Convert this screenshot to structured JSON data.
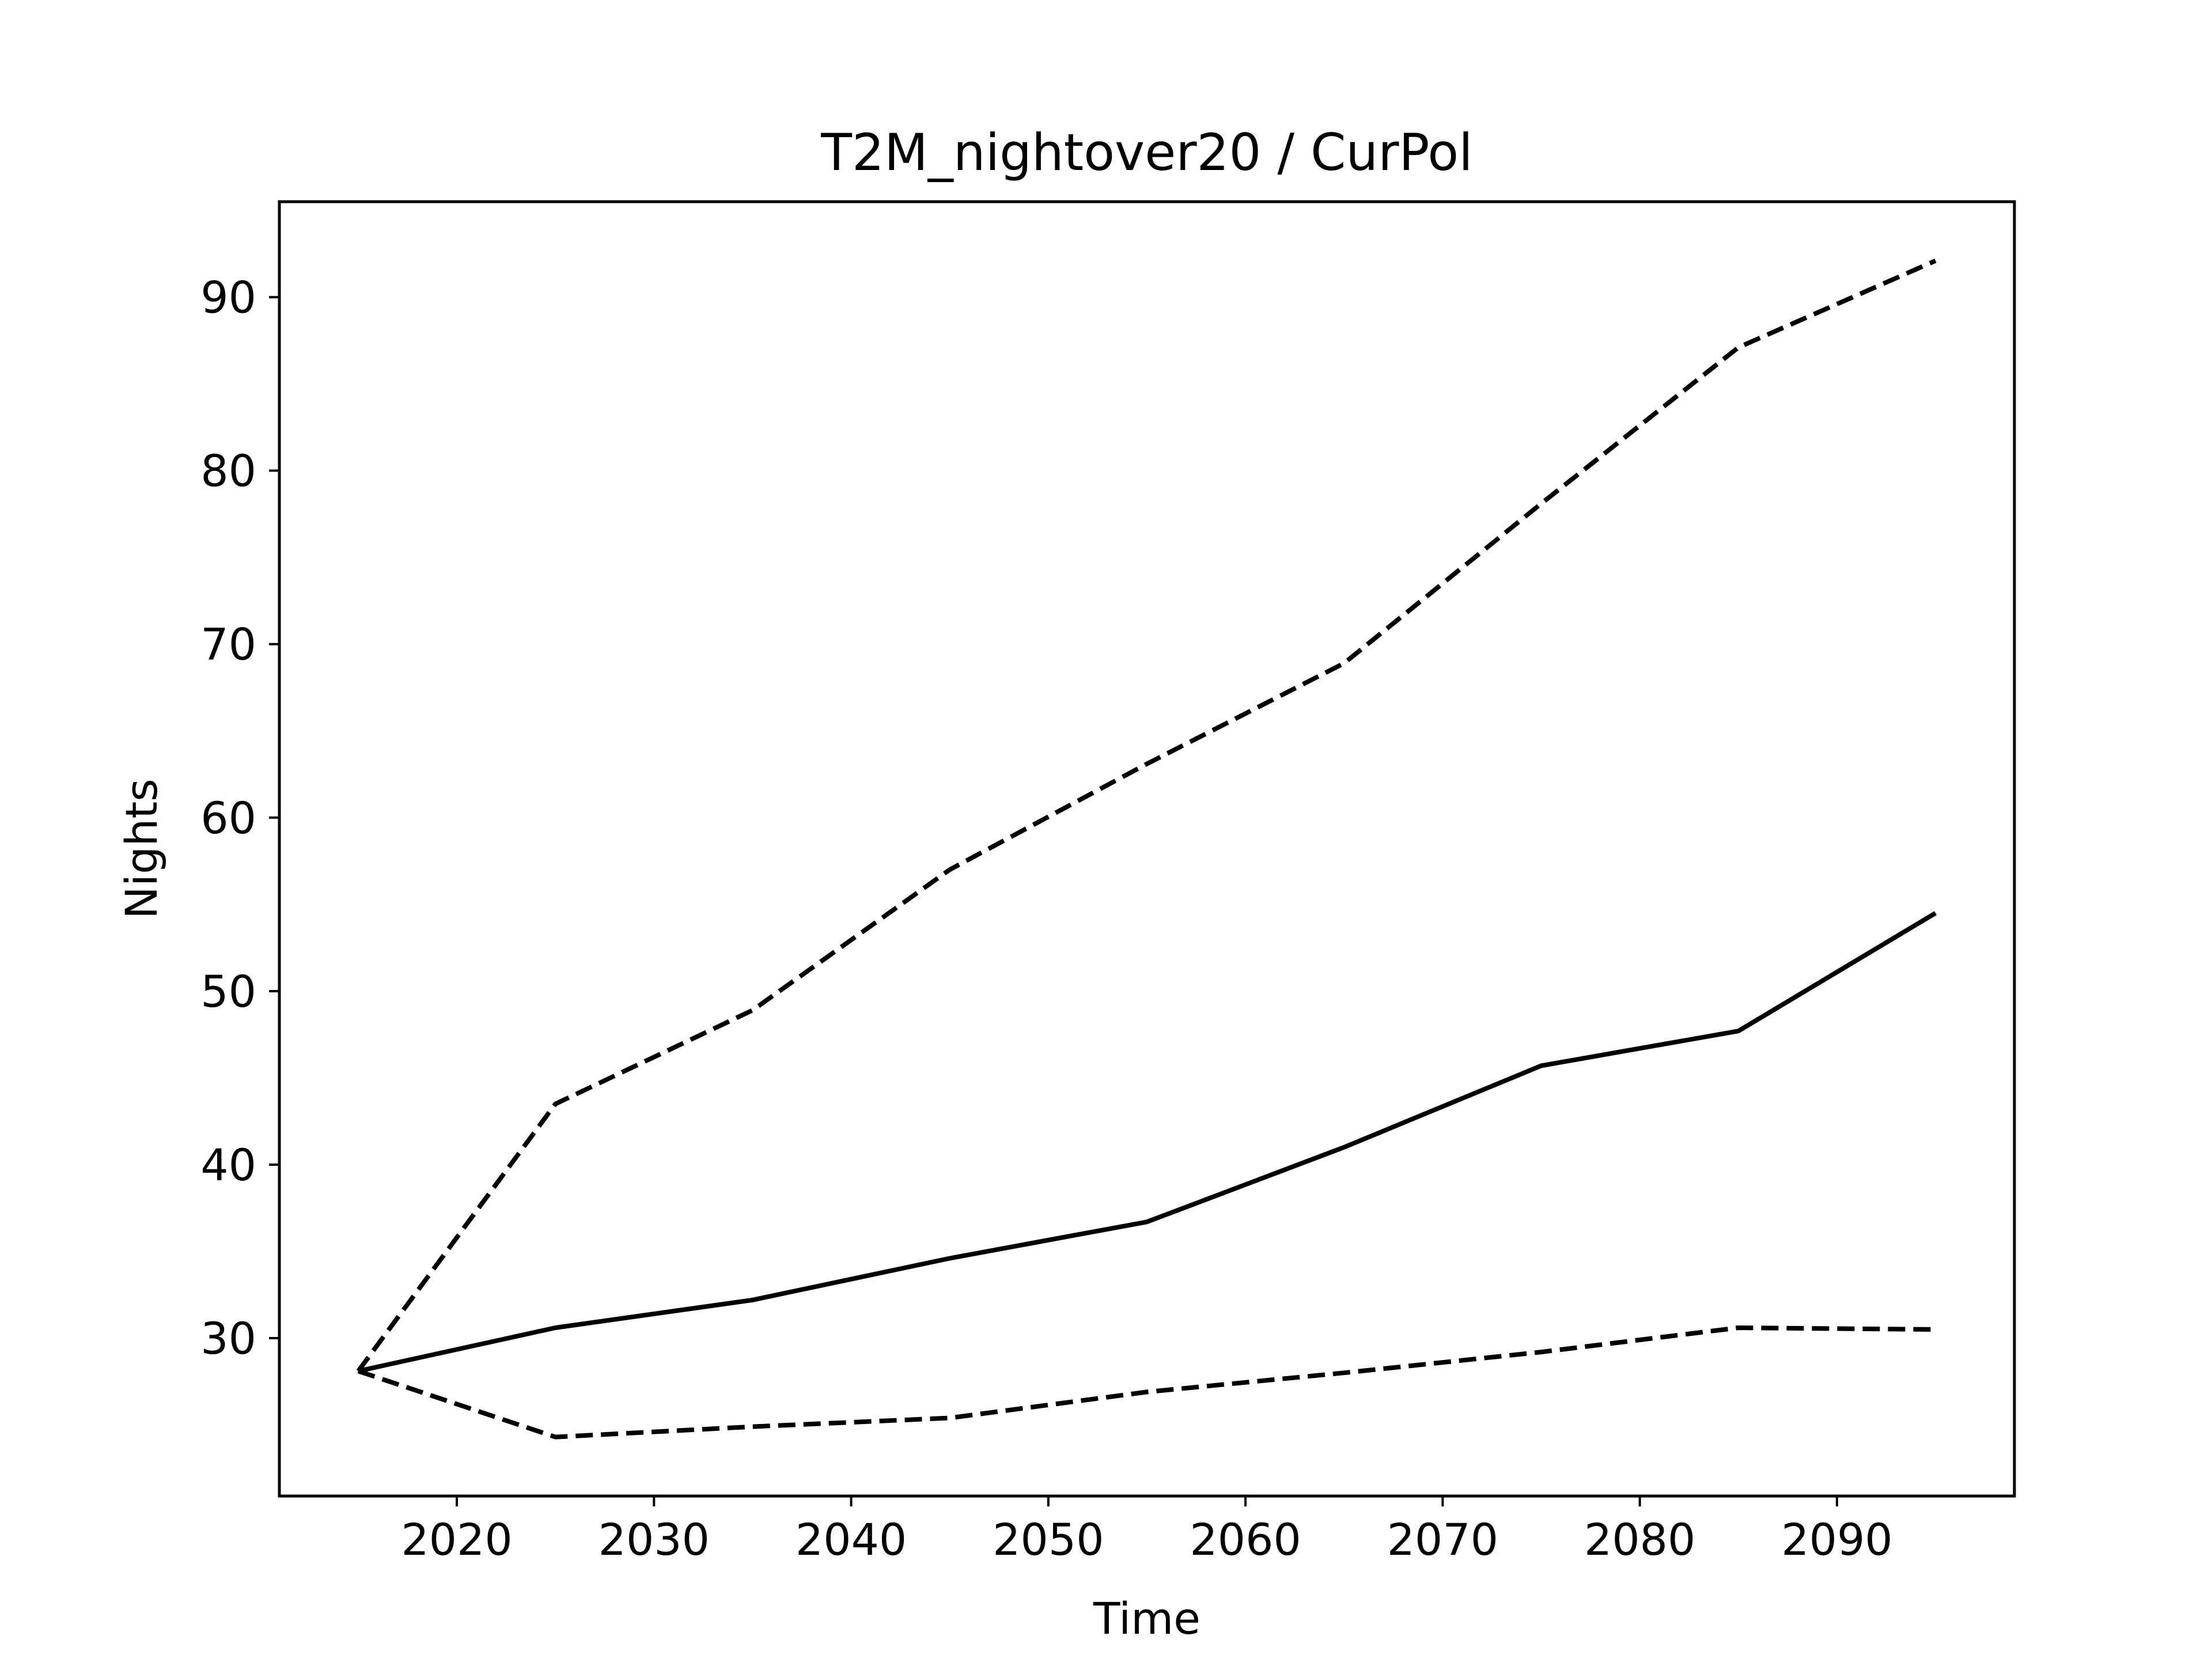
{
  "chart_data": {
    "type": "line",
    "title": "T2M_nightover20 / CurPol",
    "xlabel": "Time",
    "ylabel": "Nights",
    "xlim": [
      2011,
      2099
    ],
    "ylim": [
      20.9,
      95.5
    ],
    "xticks": [
      2020,
      2030,
      2040,
      2050,
      2060,
      2070,
      2080,
      2090
    ],
    "yticks": [
      30,
      40,
      50,
      60,
      70,
      80,
      90
    ],
    "grid": false,
    "legend": "none",
    "x": [
      2015,
      2025,
      2035,
      2045,
      2055,
      2065,
      2075,
      2085,
      2095
    ],
    "series": [
      {
        "style": "solid",
        "color": "#000000",
        "values": [
          28.1,
          30.6,
          32.2,
          34.6,
          36.7,
          41.0,
          45.7,
          47.7,
          54.5
        ]
      },
      {
        "style": "dashed",
        "color": "#000000",
        "values": [
          28.1,
          43.5,
          48.9,
          57.0,
          63.1,
          68.9,
          78.1,
          87.1,
          92.1
        ]
      },
      {
        "style": "dashed",
        "color": "#000000",
        "values": [
          28.1,
          24.3,
          24.9,
          25.4,
          26.9,
          28.0,
          29.2,
          30.6,
          30.5
        ]
      }
    ]
  }
}
